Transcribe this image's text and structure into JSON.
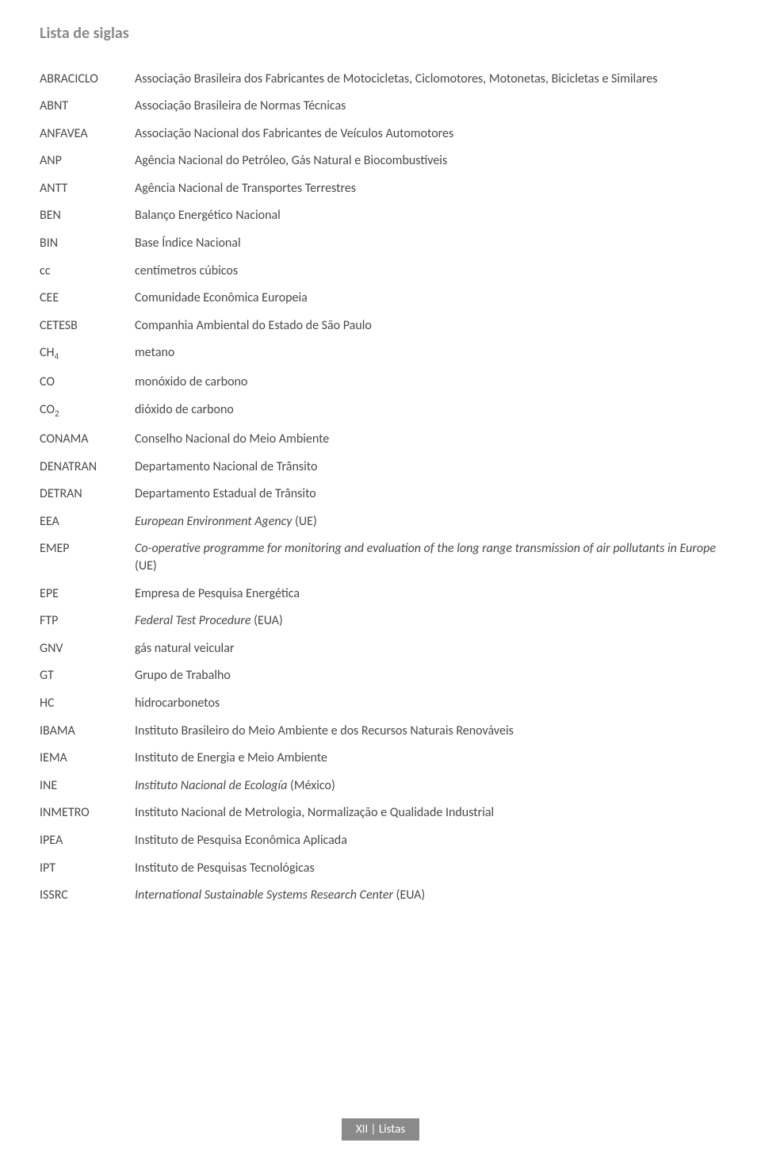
{
  "title": "Lista de siglas",
  "footer": "XII | Listas",
  "colors": {
    "title_color": "#8a8a8a",
    "text_color": "#4a4a4a",
    "footer_bg": "#8a8a8a",
    "footer_text": "#ffffff",
    "background": "#ffffff"
  },
  "typography": {
    "title_fontsize": 20,
    "body_fontsize": 16,
    "footer_fontsize": 15
  },
  "rows": [
    {
      "sigla": "ABRACICLO",
      "desc": "Associação Brasileira dos Fabricantes de Motocicletas, Ciclomotores, Motonetas, Bicicletas e Similares"
    },
    {
      "sigla": "ABNT",
      "desc": "Associação Brasileira de Normas Técnicas"
    },
    {
      "sigla": "ANFAVEA",
      "desc": "Associação Nacional dos Fabricantes de Veículos Automotores"
    },
    {
      "sigla": "ANP",
      "desc": "Agência Nacional do Petróleo, Gás Natural e Biocombustíveis"
    },
    {
      "sigla": "ANTT",
      "desc": "Agência Nacional de Transportes Terrestres"
    },
    {
      "sigla": "BEN",
      "desc": "Balanço Energético Nacional"
    },
    {
      "sigla": "BIN",
      "desc": "Base Índice Nacional"
    },
    {
      "sigla": "cc",
      "desc": "centímetros cúbicos"
    },
    {
      "sigla": "CEE",
      "desc": "Comunidade Econômica Europeia"
    },
    {
      "sigla": "CETESB",
      "desc": "Companhia Ambiental do Estado de São Paulo"
    },
    {
      "sigla": "CH",
      "sub": "4",
      "desc": "metano"
    },
    {
      "sigla": "CO",
      "desc": "monóxido de carbono"
    },
    {
      "sigla": "CO",
      "sub": "2",
      "desc": "dióxido de carbono"
    },
    {
      "sigla": "CONAMA",
      "desc": "Conselho Nacional do Meio Ambiente"
    },
    {
      "sigla": "DENATRAN",
      "desc": "Departamento Nacional de Trânsito"
    },
    {
      "sigla": "DETRAN",
      "desc": "Departamento Estadual de Trânsito"
    },
    {
      "sigla": "EEA",
      "desc_italic": "European Environment Agency",
      "suffix": " (UE)"
    },
    {
      "sigla": "EMEP",
      "desc_italic": "Co-operative programme for monitoring and evaluation of the long range transmission of air pollutants in Europe",
      "suffix": " (UE)"
    },
    {
      "sigla": "EPE",
      "desc": "Empresa de Pesquisa Energética"
    },
    {
      "sigla": "FTP",
      "desc_italic": "Federal Test Procedure",
      "suffix": " (EUA)"
    },
    {
      "sigla": "GNV",
      "desc": "gás natural veicular"
    },
    {
      "sigla": "GT",
      "desc": "Grupo de Trabalho"
    },
    {
      "sigla": "HC",
      "desc": "hidrocarbonetos"
    },
    {
      "sigla": "IBAMA",
      "desc": "Instituto Brasileiro do Meio Ambiente e dos Recursos Naturais Renováveis"
    },
    {
      "sigla": "IEMA",
      "desc": "Instituto de Energia e Meio Ambiente"
    },
    {
      "sigla": "INE",
      "desc_italic": "Instituto Nacional de Ecología",
      "suffix": " (México)"
    },
    {
      "sigla": "INMETRO",
      "desc": "Instituto Nacional de Metrologia, Normalização e Qualidade Industrial"
    },
    {
      "sigla": "IPEA",
      "desc": "Instituto de Pesquisa Econômica Aplicada"
    },
    {
      "sigla": "IPT",
      "desc": "Instituto de Pesquisas Tecnológicas"
    },
    {
      "sigla": "ISSRC",
      "desc_italic": "International Sustainable Systems Research Center",
      "suffix": " (EUA)"
    }
  ]
}
